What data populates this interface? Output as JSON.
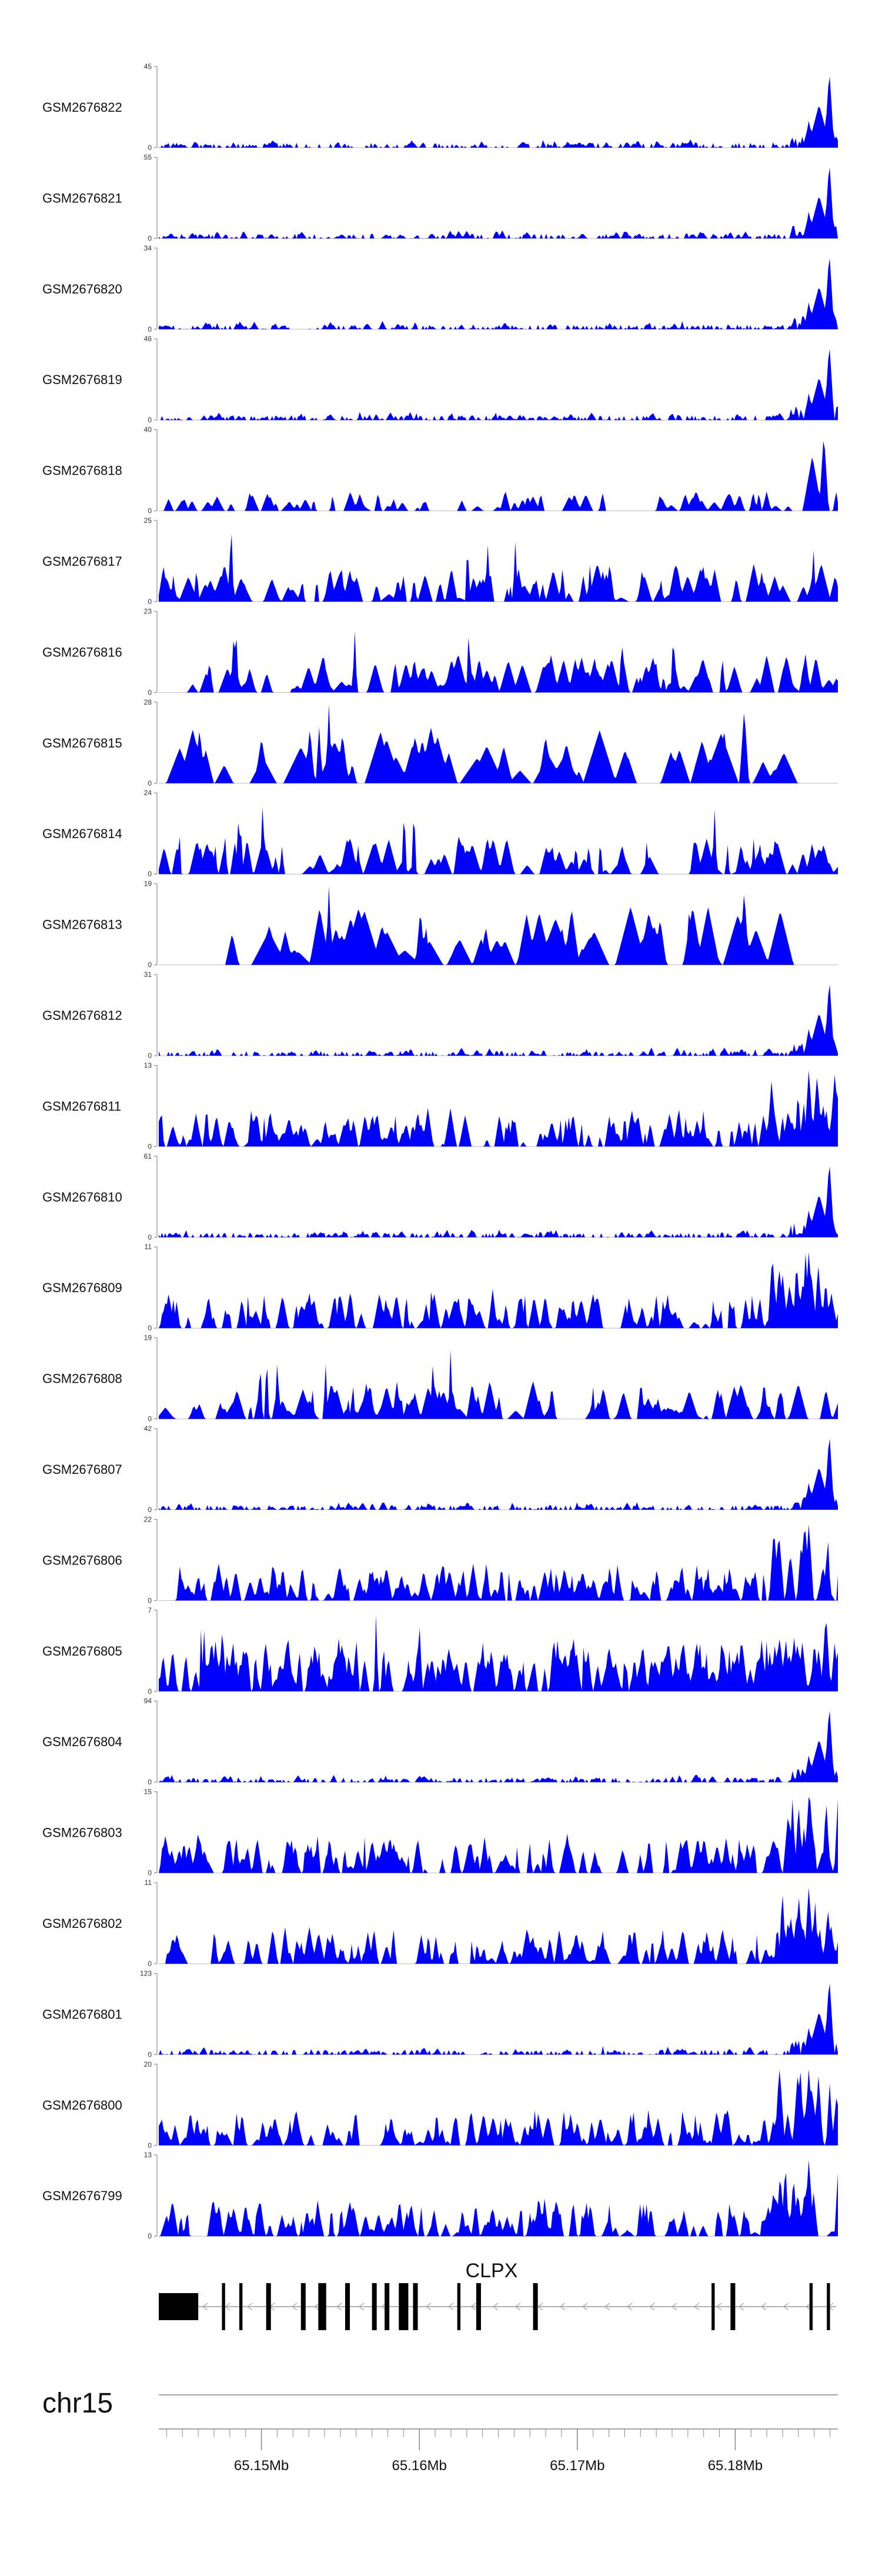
{
  "chart_data": {
    "type": "area",
    "title": "",
    "xlabel": "",
    "ylabel": "",
    "fill_color": "#0000FF",
    "x_range": [
      65.1435,
      65.1865
    ],
    "x_ticks": [
      {
        "value": 65.15,
        "label": "65.15Mb"
      },
      {
        "value": 65.16,
        "label": "65.16Mb"
      },
      {
        "value": 65.17,
        "label": "65.17Mb"
      },
      {
        "value": 65.18,
        "label": "65.18Mb"
      }
    ],
    "chromosome": "chr15",
    "series": [
      {
        "name": "GSM2676822",
        "ymax": 45,
        "ymin": 0,
        "pattern": "peak"
      },
      {
        "name": "GSM2676821",
        "ymax": 55,
        "ymin": 0,
        "pattern": "peak"
      },
      {
        "name": "GSM2676820",
        "ymax": 34,
        "ymin": 0,
        "pattern": "peak"
      },
      {
        "name": "GSM2676819",
        "ymax": 46,
        "ymin": 0,
        "pattern": "peak"
      },
      {
        "name": "GSM2676818",
        "ymax": 40,
        "ymin": 0,
        "pattern": "mixed"
      },
      {
        "name": "GSM2676817",
        "ymax": 25,
        "ymin": 0,
        "pattern": "spiky"
      },
      {
        "name": "GSM2676816",
        "ymax": 23,
        "ymin": 0,
        "pattern": "spiky"
      },
      {
        "name": "GSM2676815",
        "ymax": 28,
        "ymin": 0,
        "pattern": "sparse"
      },
      {
        "name": "GSM2676814",
        "ymax": 24,
        "ymin": 0,
        "pattern": "spiky"
      },
      {
        "name": "GSM2676813",
        "ymax": 19,
        "ymin": 0,
        "pattern": "sparse"
      },
      {
        "name": "GSM2676812",
        "ymax": 31,
        "ymin": 0,
        "pattern": "peak"
      },
      {
        "name": "GSM2676811",
        "ymax": 13,
        "ymin": 0,
        "pattern": "dense"
      },
      {
        "name": "GSM2676810",
        "ymax": 61,
        "ymin": 0,
        "pattern": "peak"
      },
      {
        "name": "GSM2676809",
        "ymax": 11,
        "ymin": 0,
        "pattern": "dense"
      },
      {
        "name": "GSM2676808",
        "ymax": 19,
        "ymin": 0,
        "pattern": "spiky"
      },
      {
        "name": "GSM2676807",
        "ymax": 42,
        "ymin": 0,
        "pattern": "peak"
      },
      {
        "name": "GSM2676806",
        "ymax": 22,
        "ymin": 0,
        "pattern": "dense"
      },
      {
        "name": "GSM2676805",
        "ymax": 7,
        "ymin": 0,
        "pattern": "verydense"
      },
      {
        "name": "GSM2676804",
        "ymax": 94,
        "ymin": 0,
        "pattern": "peak"
      },
      {
        "name": "GSM2676803",
        "ymax": 15,
        "ymin": 0,
        "pattern": "dense"
      },
      {
        "name": "GSM2676802",
        "ymax": 11,
        "ymin": 0,
        "pattern": "dense"
      },
      {
        "name": "GSM2676801",
        "ymax": 123,
        "ymin": 0,
        "pattern": "peak"
      },
      {
        "name": "GSM2676800",
        "ymax": 20,
        "ymin": 0,
        "pattern": "dense"
      },
      {
        "name": "GSM2676799",
        "ymax": 13,
        "ymin": 0,
        "pattern": "dense"
      }
    ],
    "gene": {
      "name": "CLPX",
      "strand": "-",
      "start": 65.1435,
      "end": 65.1864,
      "exons": [
        [
          65.1435,
          65.146
        ],
        [
          65.1475,
          65.1477
        ],
        [
          65.1486,
          65.1488
        ],
        [
          65.1503,
          65.1506
        ],
        [
          65.1525,
          65.1528
        ],
        [
          65.1536,
          65.1541
        ],
        [
          65.1553,
          65.1556
        ],
        [
          65.157,
          65.1573
        ],
        [
          65.1578,
          65.1581
        ],
        [
          65.1587,
          65.1593
        ],
        [
          65.1596,
          65.1599
        ],
        [
          65.1624,
          65.1626
        ],
        [
          65.1636,
          65.1639
        ],
        [
          65.1672,
          65.1675
        ],
        [
          65.1785,
          65.1787
        ],
        [
          65.1797,
          65.18
        ],
        [
          65.1847,
          65.1849
        ],
        [
          65.1858,
          65.186
        ]
      ]
    }
  }
}
